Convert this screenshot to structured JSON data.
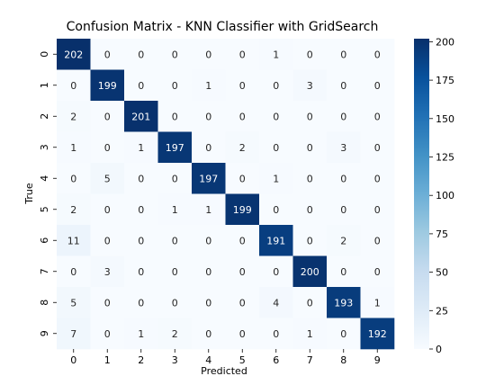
{
  "chart_data": {
    "type": "heatmap",
    "title": "Confusion Matrix - KNN Classifier with GridSearch",
    "xlabel": "Predicted",
    "ylabel": "True",
    "x_categories": [
      "0",
      "1",
      "2",
      "3",
      "4",
      "5",
      "6",
      "7",
      "8",
      "9"
    ],
    "y_categories": [
      "0",
      "1",
      "2",
      "3",
      "4",
      "5",
      "6",
      "7",
      "8",
      "9"
    ],
    "matrix": [
      [
        202,
        0,
        0,
        0,
        0,
        0,
        1,
        0,
        0,
        0
      ],
      [
        0,
        199,
        0,
        0,
        1,
        0,
        0,
        3,
        0,
        0
      ],
      [
        2,
        0,
        201,
        0,
        0,
        0,
        0,
        0,
        0,
        0
      ],
      [
        1,
        0,
        1,
        197,
        0,
        2,
        0,
        0,
        3,
        0
      ],
      [
        0,
        5,
        0,
        0,
        197,
        0,
        1,
        0,
        0,
        0
      ],
      [
        2,
        0,
        0,
        1,
        1,
        199,
        0,
        0,
        0,
        0
      ],
      [
        11,
        0,
        0,
        0,
        0,
        0,
        191,
        0,
        2,
        0
      ],
      [
        0,
        3,
        0,
        0,
        0,
        0,
        0,
        200,
        0,
        0
      ],
      [
        5,
        0,
        0,
        0,
        0,
        0,
        4,
        0,
        193,
        1
      ],
      [
        7,
        0,
        1,
        2,
        0,
        0,
        0,
        1,
        0,
        192
      ]
    ],
    "colormap": "Blues",
    "colorbar": {
      "range": [
        0,
        202
      ],
      "ticks": [
        0,
        25,
        50,
        75,
        100,
        125,
        150,
        175,
        200
      ]
    },
    "annotated": true,
    "grid": false
  }
}
